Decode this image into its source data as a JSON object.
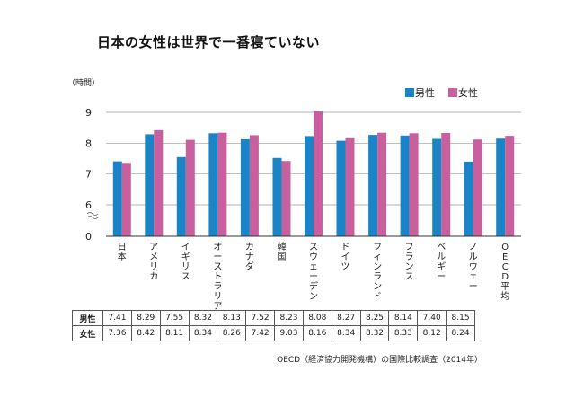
{
  "chart_data": {
    "type": "bar",
    "title": "日本の女性は世界で一番寝ていない",
    "ylabel": "（時間）",
    "xlabel": "",
    "ylim": [
      0,
      10
    ],
    "y_ticks": [
      0,
      6,
      7,
      8,
      9
    ],
    "axis_break": true,
    "categories": [
      "日本",
      "アメリカ",
      "イギリス",
      "オーストラリア",
      "カナダ",
      "韓国",
      "スウェーデン",
      "ドイツ",
      "フィンランド",
      "フランス",
      "ベルギー",
      "ノルウェー",
      "OECD平均"
    ],
    "series": [
      {
        "name": "男性",
        "color": "#1a84c7",
        "values": [
          7.41,
          8.29,
          7.55,
          8.32,
          8.13,
          7.52,
          8.23,
          8.08,
          8.27,
          8.25,
          8.14,
          7.4,
          8.15
        ]
      },
      {
        "name": "女性",
        "color": "#c8609e",
        "values": [
          7.36,
          8.42,
          8.11,
          8.34,
          8.26,
          7.42,
          9.03,
          8.16,
          8.34,
          8.32,
          8.33,
          8.12,
          8.24
        ]
      }
    ],
    "legend_position": "top-right",
    "table_rows": [
      {
        "label": "男性",
        "values": [
          "7.41",
          "8.29",
          "7.55",
          "8.32",
          "8.13",
          "7.52",
          "8.23",
          "8.08",
          "8.27",
          "8.25",
          "8.14",
          "7.40",
          "8.15"
        ]
      },
      {
        "label": "女性",
        "values": [
          "7.36",
          "8.42",
          "8.11",
          "8.34",
          "8.26",
          "7.42",
          "9.03",
          "8.16",
          "8.34",
          "8.32",
          "8.33",
          "8.12",
          "8.24"
        ]
      }
    ],
    "source": "OECD（経済協力開発機構）の国際比較調査（2014年）"
  }
}
